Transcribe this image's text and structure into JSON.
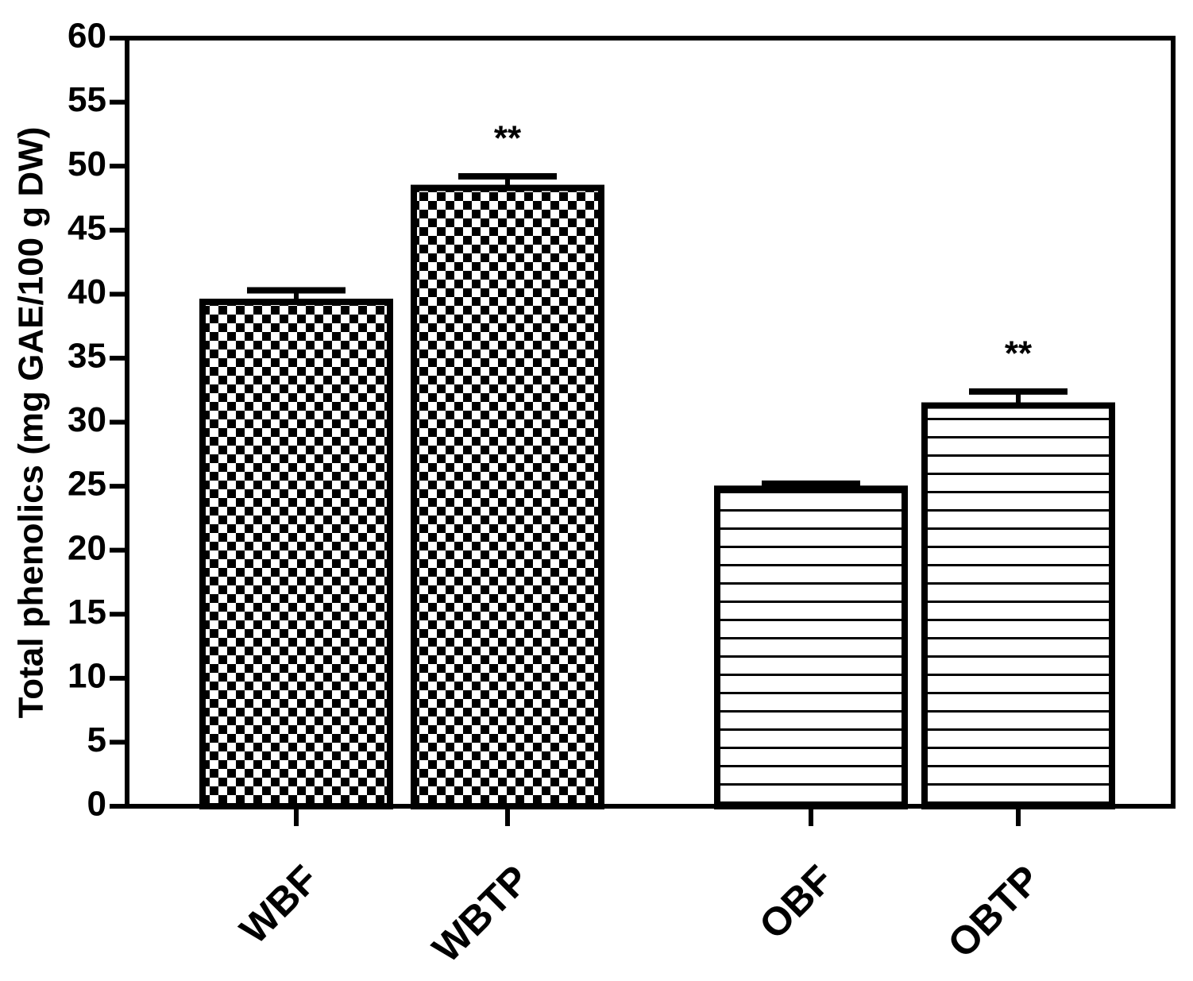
{
  "chart_data": {
    "type": "bar",
    "y_label": "Total phenolics (mg GAE/100 g DW)",
    "categories": [
      "WBF",
      "WBTP",
      "OBF",
      "OBTP"
    ],
    "values": [
      39.4,
      48.3,
      24.8,
      31.3
    ],
    "errors": [
      0.9,
      0.9,
      0.4,
      1.1
    ],
    "annotations": [
      null,
      "**",
      null,
      "**"
    ],
    "patterns": [
      "checker",
      "checker",
      "stripes",
      "stripes"
    ],
    "color": "#000000",
    "ylim": [
      0,
      60
    ],
    "yticks": [
      0,
      5,
      10,
      15,
      20,
      25,
      30,
      35,
      40,
      45,
      50,
      55,
      60
    ],
    "grid": false
  }
}
